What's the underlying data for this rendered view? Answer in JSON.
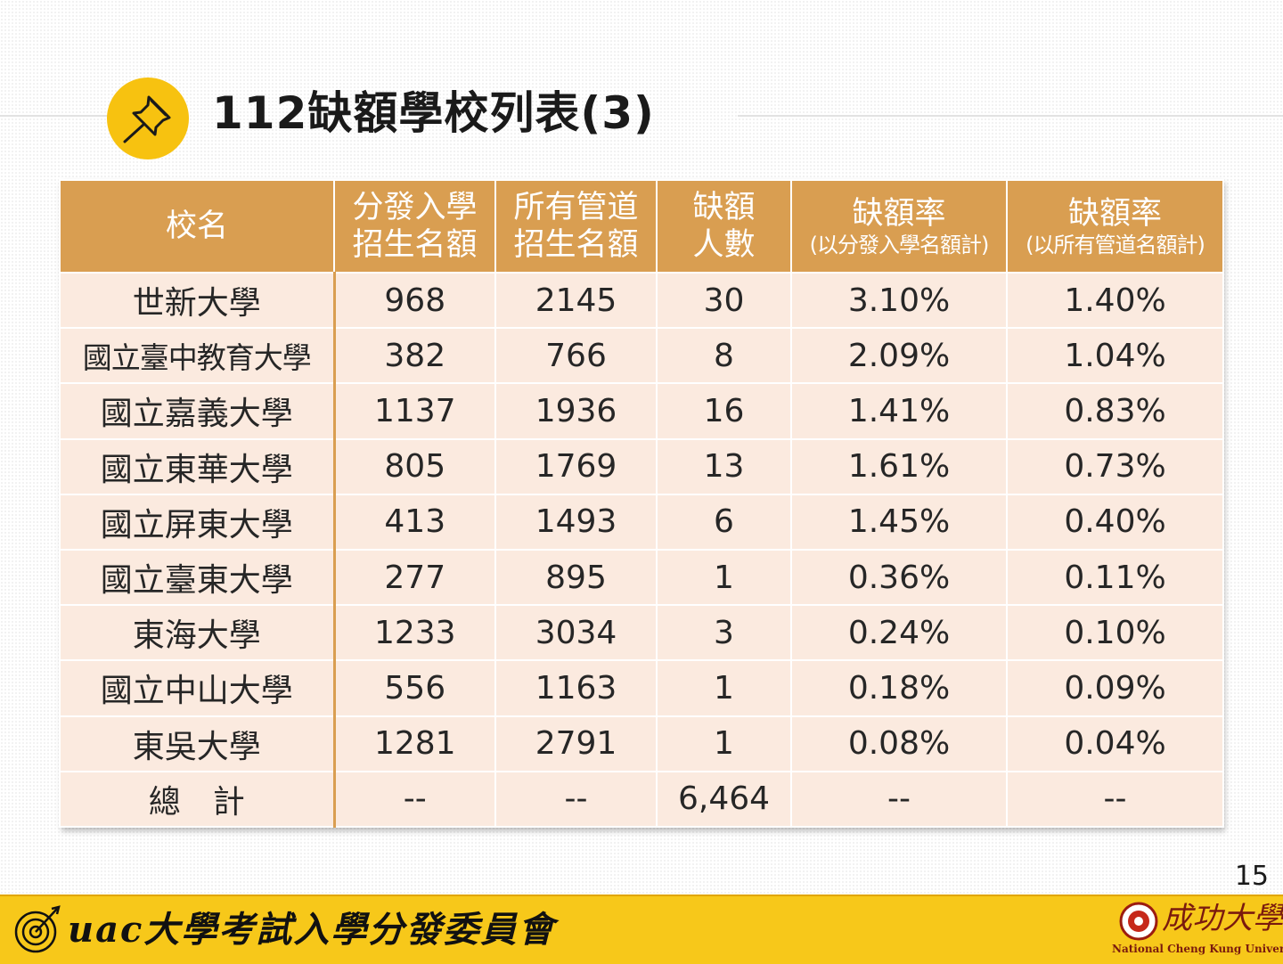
{
  "title": "112缺額學校列表(3)",
  "table": {
    "headers": [
      {
        "line1": "校名"
      },
      {
        "line1": "分發入學",
        "line2": "招生名額"
      },
      {
        "line1": "所有管道",
        "line2": "招生名額"
      },
      {
        "line1": "缺額",
        "line2": "人數"
      },
      {
        "line1": "缺額率",
        "sub": "(以分發入學名額計)"
      },
      {
        "line1": "缺額率",
        "sub": "(以所有管道名額計)"
      }
    ],
    "rows": [
      [
        "世新大學",
        "968",
        "2145",
        "30",
        "3.10%",
        "1.40%"
      ],
      [
        "國立臺中教育大學",
        "382",
        "766",
        "8",
        "2.09%",
        "1.04%"
      ],
      [
        "國立嘉義大學",
        "1137",
        "1936",
        "16",
        "1.41%",
        "0.83%"
      ],
      [
        "國立東華大學",
        "805",
        "1769",
        "13",
        "1.61%",
        "0.73%"
      ],
      [
        "國立屏東大學",
        "413",
        "1493",
        "6",
        "1.45%",
        "0.40%"
      ],
      [
        "國立臺東大學",
        "277",
        "895",
        "1",
        "0.36%",
        "0.11%"
      ],
      [
        "東海大學",
        "1233",
        "3034",
        "3",
        "0.24%",
        "0.10%"
      ],
      [
        "國立中山大學",
        "556",
        "1163",
        "1",
        "0.18%",
        "0.09%"
      ],
      [
        "東吳大學",
        "1281",
        "2791",
        "1",
        "0.08%",
        "0.04%"
      ]
    ],
    "total": {
      "label_part1": "總",
      "label_part2": "計",
      "values": [
        "--",
        "--",
        "6,464",
        "--",
        "--"
      ]
    }
  },
  "page_number": "15",
  "footer": {
    "left_text": "uac大學考試入學分發委員會",
    "right_text_cn": "成功大學",
    "right_text_en": "National Cheng Kung University"
  },
  "colors": {
    "header_bg": "#d99e51",
    "cell_bg": "#fbeadf",
    "footer_bg": "#f7c81a",
    "pin_circle": "#f7c210"
  },
  "icons": {
    "title_icon": "pushpin-icon",
    "footer_logo": "uac-target-logo",
    "university_seal": "ncku-seal-icon"
  }
}
